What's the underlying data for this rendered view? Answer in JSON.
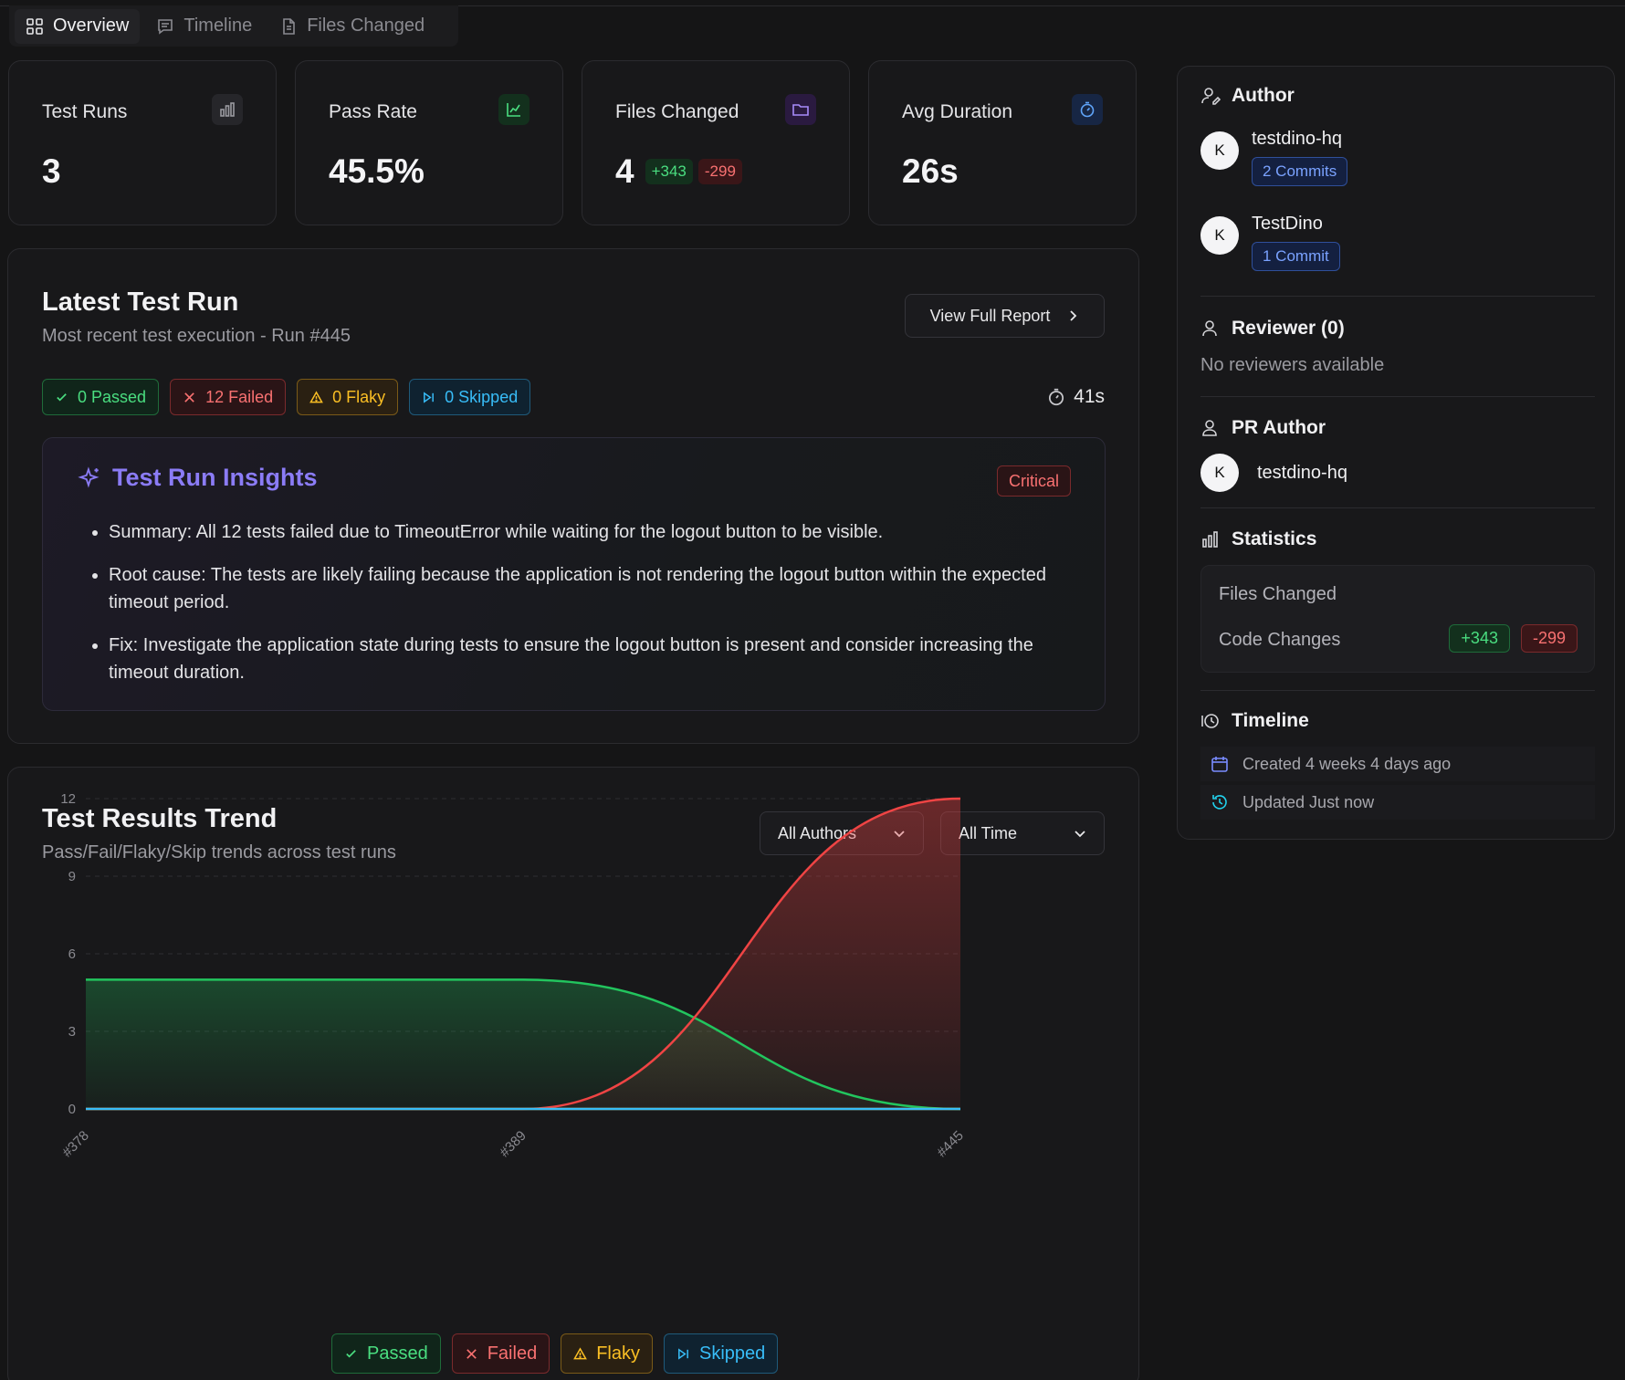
{
  "tabs": [
    {
      "label": "Overview",
      "icon": "grid-icon"
    },
    {
      "label": "Timeline",
      "icon": "message-icon"
    },
    {
      "label": "Files Changed",
      "icon": "file-icon"
    }
  ],
  "stats": {
    "test_runs": {
      "label": "Test Runs",
      "value": "3"
    },
    "pass_rate": {
      "label": "Pass Rate",
      "value": "45.5%"
    },
    "files_changed": {
      "label": "Files Changed",
      "value": "4",
      "additions": "+343",
      "deletions": "-299"
    },
    "avg_duration": {
      "label": "Avg Duration",
      "value": "26s"
    }
  },
  "latest": {
    "title": "Latest Test Run",
    "subtitle": "Most recent test execution - Run #445",
    "report_button": "View Full Report",
    "badges": {
      "passed": "0 Passed",
      "failed": "12 Failed",
      "flaky": "0 Flaky",
      "skipped": "0 Skipped"
    },
    "duration": "41s",
    "insights": {
      "title": "Test Run Insights",
      "severity": "Critical",
      "items": [
        "Summary: All 12 tests failed due to TimeoutError while waiting for the logout button to be visible.",
        "Root cause: The tests are likely failing because the application is not rendering the logout button within the expected timeout period.",
        "Fix: Investigate the application state during tests to ensure the logout button is present and consider increasing the timeout duration."
      ]
    }
  },
  "trend": {
    "title": "Test Results Trend",
    "subtitle": "Pass/Fail/Flaky/Skip trends across test runs",
    "author_filter": "All Authors",
    "time_filter": "All Time",
    "legend": {
      "passed": "Passed",
      "failed": "Failed",
      "flaky": "Flaky",
      "skipped": "Skipped"
    }
  },
  "chart_data": {
    "type": "area",
    "categories": [
      "#378",
      "#389",
      "#445"
    ],
    "yticks": [
      "0",
      "3",
      "6",
      "9",
      "12"
    ],
    "ylim": [
      0,
      12
    ],
    "grid": true,
    "series": [
      {
        "name": "Passed",
        "values": [
          5,
          5,
          0
        ],
        "color": "#22c55e"
      },
      {
        "name": "Failed",
        "values": [
          0,
          0,
          12
        ],
        "color": "#ef4444"
      },
      {
        "name": "Flaky",
        "values": [
          0,
          0,
          0
        ],
        "color": "#f59e0b"
      },
      {
        "name": "Skipped",
        "values": [
          0,
          0,
          0
        ],
        "color": "#38bdf8"
      }
    ]
  },
  "sidebar": {
    "author": {
      "title": "Author",
      "people": [
        {
          "initial": "K",
          "name": "testdino-hq",
          "commits": "2 Commits"
        },
        {
          "initial": "K",
          "name": "TestDino",
          "commits": "1 Commit"
        }
      ]
    },
    "reviewer": {
      "title": "Reviewer (0)",
      "empty": "No reviewers available"
    },
    "pr_author": {
      "title": "PR Author",
      "initial": "K",
      "name": "testdino-hq"
    },
    "statistics": {
      "title": "Statistics",
      "files_changed_label": "Files Changed",
      "code_changes_label": "Code Changes",
      "additions": "+343",
      "deletions": "-299"
    },
    "timeline": {
      "title": "Timeline",
      "created": "Created 4 weeks 4 days ago",
      "updated": "Updated Just now"
    }
  },
  "colors": {
    "passed": "#4ade80",
    "failed": "#f87171",
    "flaky": "#fbbf24",
    "skipped": "#38bdf8",
    "accent": "#8b7cf6",
    "background": "#151516"
  }
}
